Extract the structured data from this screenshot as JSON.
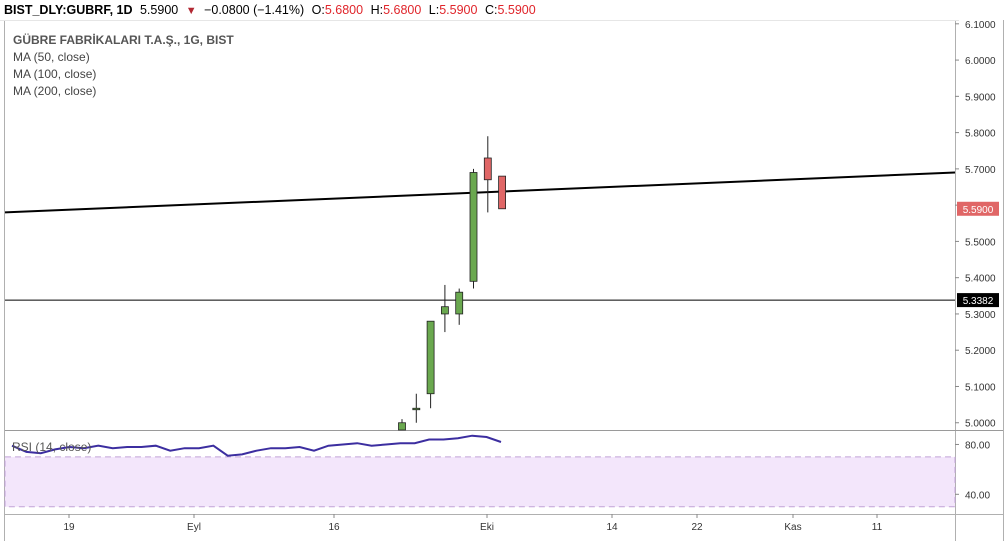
{
  "ticker": {
    "symbol": "BIST_DLY:GUBRF, 1D",
    "price": "5.5900",
    "arrow": "▼",
    "change": "−0.0800 (−1.41%)",
    "o_label": "O:",
    "o_value": "5.6800",
    "h_label": "H:",
    "h_value": "5.6800",
    "l_label": "L:",
    "l_value": "5.5900",
    "c_label": "C:",
    "c_value": "5.5900"
  },
  "legend": {
    "title": "GÜBRE FABRİKALARI T.A.Ş., 1G, BIST",
    "ma50": "MA (50, close)",
    "ma100": "MA (100, close)",
    "ma200": "MA (200, close)"
  },
  "rsi": {
    "label": "RSI (14, close)"
  },
  "colors": {
    "up": "#6aa84f",
    "down": "#e06666",
    "trendline": "#000000",
    "rsi_line": "#3c2ea0",
    "rsi_band": "#f3e6fb",
    "rsi_band_border": "#c2a3d8"
  },
  "chart_data": [
    {
      "type": "candlestick",
      "x_tick_labels": [
        "19",
        "Eyl",
        "16",
        "Eki",
        "14",
        "22",
        "Kas",
        "11"
      ],
      "y_tick_labels": [
        "6.1000",
        "6.0000",
        "5.9000",
        "5.8000",
        "5.7000",
        "5.6000",
        "5.5000",
        "5.4000",
        "5.3000",
        "5.2000",
        "5.1000",
        "5.0000"
      ],
      "ylim": [
        4.98,
        6.105
      ],
      "grid": false,
      "candles": [
        {
          "o": 4.98,
          "h": 5.01,
          "l": 4.98,
          "c": 5.0
        },
        {
          "o": 5.04,
          "h": 5.08,
          "l": 5.0,
          "c": 5.04
        },
        {
          "o": 5.08,
          "h": 5.28,
          "l": 5.04,
          "c": 5.28
        },
        {
          "o": 5.3,
          "h": 5.38,
          "l": 5.25,
          "c": 5.32
        },
        {
          "o": 5.3,
          "h": 5.37,
          "l": 5.27,
          "c": 5.36
        },
        {
          "o": 5.39,
          "h": 5.7,
          "l": 5.37,
          "c": 5.69
        },
        {
          "o": 5.73,
          "h": 5.79,
          "l": 5.58,
          "c": 5.67
        },
        {
          "o": 5.68,
          "h": 5.68,
          "l": 5.59,
          "c": 5.59
        }
      ],
      "last_price_label": "5.5900",
      "horizontal_line_label": "5.3382",
      "horizontal_line_value": 5.3382,
      "trendline": {
        "from": [
          0,
          5.58
        ],
        "to": [
          1,
          5.69
        ]
      }
    },
    {
      "type": "line",
      "name": "RSI (14, close)",
      "y_tick_labels": [
        "80.00",
        "40.00"
      ],
      "ylim": [
        25,
        90
      ],
      "band": [
        30,
        70
      ],
      "values": [
        79,
        74,
        73,
        76,
        78,
        77,
        79,
        77,
        78,
        78,
        79,
        75,
        77,
        77,
        79,
        71,
        72,
        75,
        77,
        77,
        78,
        75,
        79,
        80,
        81,
        79,
        80,
        81,
        81,
        84,
        84,
        85,
        87,
        86,
        82
      ]
    }
  ]
}
